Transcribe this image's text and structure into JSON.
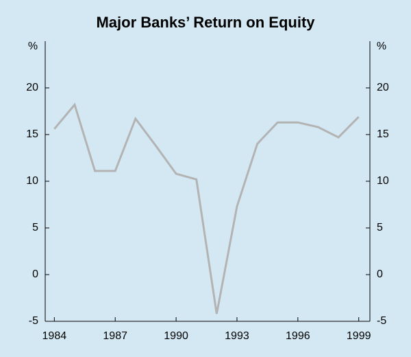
{
  "chart_data": {
    "type": "line",
    "title": "Major Banks’ Return on Equity",
    "y_label": "%",
    "y2_label": "%",
    "x": [
      1984,
      1985,
      1986,
      1987,
      1988,
      1989,
      1990,
      1991,
      1992,
      1993,
      1994,
      1995,
      1996,
      1997,
      1998,
      1999
    ],
    "series": [
      {
        "name": "Return on equity",
        "color": "#b3b3b3",
        "values": [
          15.6,
          18.2,
          11.1,
          11.1,
          16.7,
          13.8,
          10.8,
          10.2,
          -4.2,
          7.3,
          14.0,
          16.3,
          16.3,
          15.8,
          14.7,
          16.9
        ]
      }
    ],
    "xlim": [
      1983.55,
      1999.55
    ],
    "xticks": [
      1984,
      1987,
      1990,
      1993,
      1996,
      1999
    ],
    "ylim": [
      -5,
      25
    ],
    "yticks": [
      -5,
      0,
      5,
      10,
      15,
      20
    ],
    "y2lim": [
      -5,
      25
    ],
    "y2ticks": [
      -5,
      0,
      5,
      10,
      15,
      20
    ]
  }
}
